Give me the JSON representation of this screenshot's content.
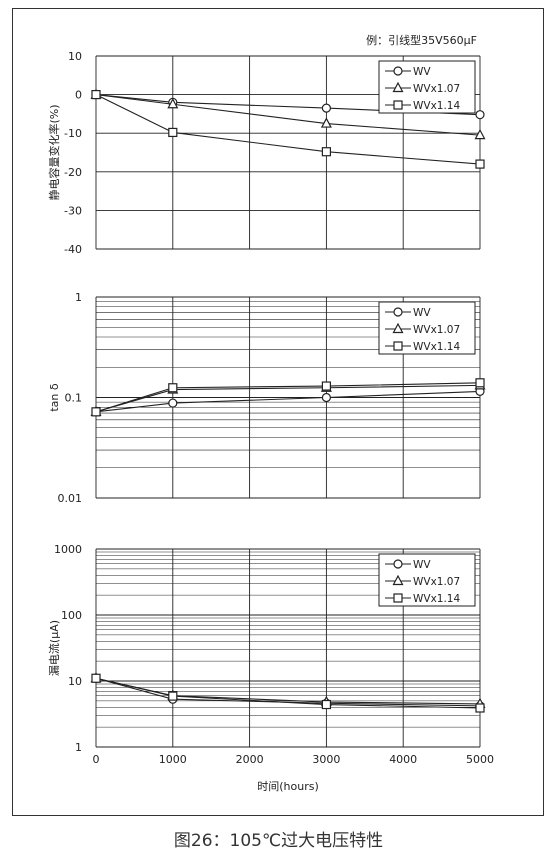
{
  "caption": "图26：105℃过大电压特性",
  "example_note": "例：引线型35V560μF",
  "x_axis": {
    "label": "时间(hours)",
    "ticks": [
      "0",
      "1000",
      "2000",
      "3000",
      "4000",
      "5000"
    ]
  },
  "chart_data": [
    {
      "type": "line",
      "ylabel": "静电容量变化率(%)",
      "yscale": "linear",
      "xlim": [
        0,
        5000
      ],
      "ylim": [
        -40,
        10
      ],
      "yticks": [
        "10",
        "0",
        "-10",
        "-20",
        "-30",
        "-40"
      ],
      "grid": true,
      "legend_position": "top-right",
      "series": [
        {
          "name": "WV",
          "marker": "circle",
          "x": [
            0,
            1000,
            3000,
            5000
          ],
          "y": [
            0,
            -2,
            -3.5,
            -5.2
          ]
        },
        {
          "name": "WVx1.07",
          "marker": "triangle",
          "x": [
            0,
            1000,
            3000,
            5000
          ],
          "y": [
            0,
            -2.5,
            -7.5,
            -10.5
          ]
        },
        {
          "name": "WVx1.14",
          "marker": "square",
          "x": [
            0,
            1000,
            3000,
            5000
          ],
          "y": [
            0,
            -9.8,
            -14.8,
            -18
          ]
        }
      ]
    },
    {
      "type": "line",
      "ylabel": "tan δ",
      "yscale": "log",
      "xlim": [
        0,
        5000
      ],
      "ylim": [
        0.01,
        1
      ],
      "yticks": [
        "1",
        "0.1",
        "0.01"
      ],
      "grid": true,
      "legend_position": "top-right",
      "series": [
        {
          "name": "WV",
          "marker": "circle",
          "x": [
            0,
            1000,
            3000,
            5000
          ],
          "y": [
            0.072,
            0.088,
            0.1,
            0.115
          ]
        },
        {
          "name": "WVx1.07",
          "marker": "triangle",
          "x": [
            0,
            1000,
            3000,
            5000
          ],
          "y": [
            0.072,
            0.12,
            0.125,
            0.132
          ]
        },
        {
          "name": "WVx1.14",
          "marker": "square",
          "x": [
            0,
            1000,
            3000,
            5000
          ],
          "y": [
            0.072,
            0.125,
            0.13,
            0.14
          ]
        }
      ]
    },
    {
      "type": "line",
      "ylabel": "漏电流(μA)",
      "yscale": "log",
      "xlim": [
        0,
        5000
      ],
      "ylim": [
        1,
        1000
      ],
      "yticks": [
        "1000",
        "100",
        "10",
        "1"
      ],
      "grid": true,
      "legend_position": "top-right",
      "series": [
        {
          "name": "WV",
          "marker": "circle",
          "x": [
            0,
            1000,
            3000,
            5000
          ],
          "y": [
            11,
            5.3,
            4.6,
            4.2
          ]
        },
        {
          "name": "WVx1.07",
          "marker": "triangle",
          "x": [
            0,
            1000,
            3000,
            5000
          ],
          "y": [
            11,
            6,
            4.8,
            4.5
          ]
        },
        {
          "name": "WVx1.14",
          "marker": "square",
          "x": [
            0,
            1000,
            3000,
            5000
          ],
          "y": [
            11,
            5.9,
            4.4,
            3.9
          ]
        }
      ]
    }
  ]
}
